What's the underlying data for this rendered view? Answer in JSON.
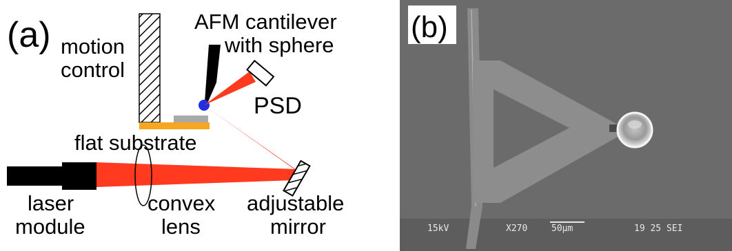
{
  "panel_a": {
    "label": "(a)",
    "motion_control": [
      "motion",
      "control"
    ],
    "afm_cantilever": [
      "AFM cantilever",
      "with sphere"
    ],
    "psd": "PSD",
    "flat_substrate": "flat substrate",
    "laser_module": [
      "laser",
      "module"
    ],
    "convex_lens": [
      "convex",
      "lens"
    ],
    "adjustable_mirror": [
      "adjustable",
      "mirror"
    ]
  },
  "panel_b": {
    "label": "(b)",
    "sem_info": {
      "voltage": "15kV",
      "magnification": "X270",
      "scale": "50µm",
      "id": "19 25 SEI"
    }
  },
  "colors": {
    "laser_beam": "#ff3a1f",
    "substrate": "#f6a623",
    "sphere": "#2030e0",
    "sem_background": "#6b6b6b"
  }
}
